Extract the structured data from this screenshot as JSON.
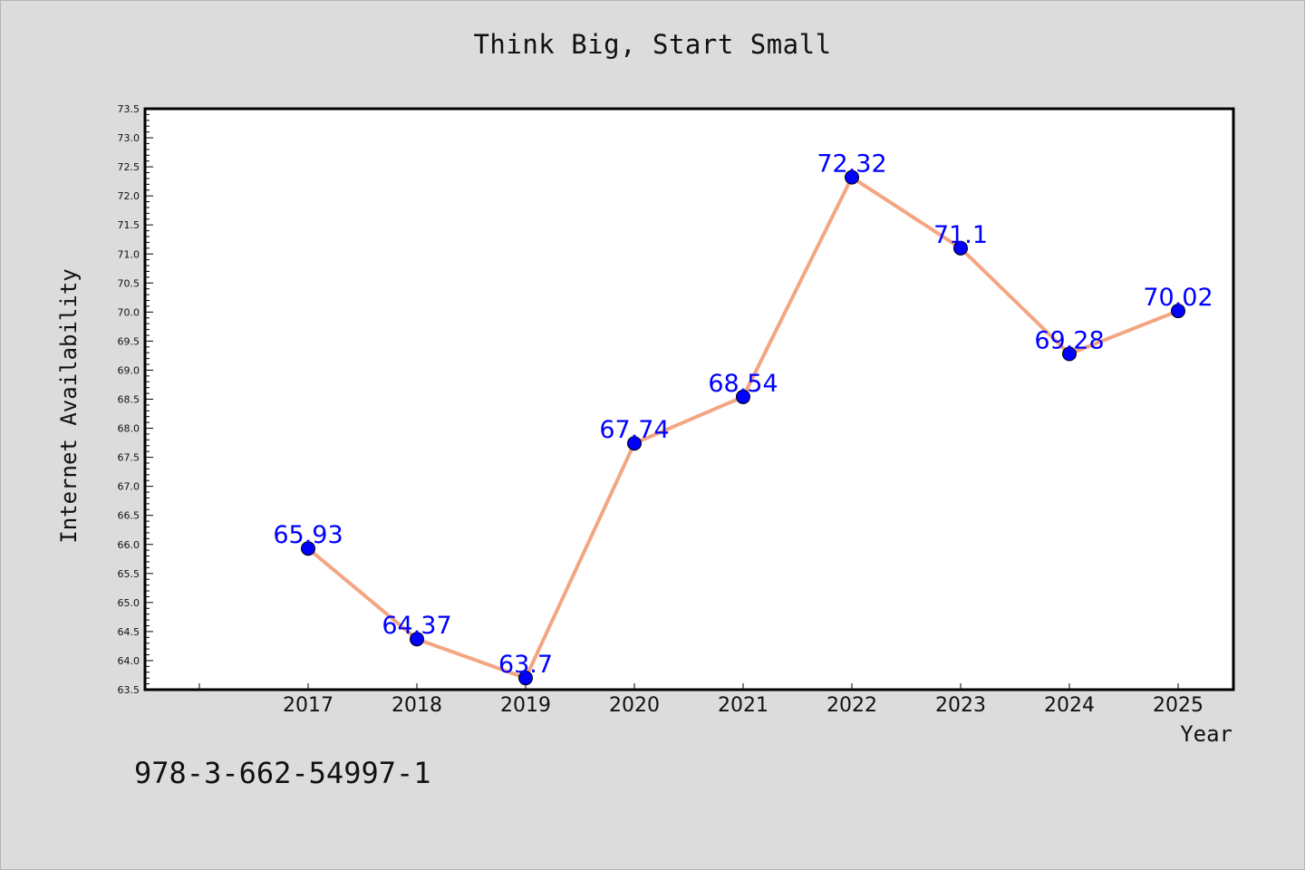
{
  "title": "Think Big, Start Small",
  "footer_text": "978-3-662-54997-1",
  "colors": {
    "background": "#dcdcdc",
    "plot_background": "#ffffff",
    "line": "#f4a582",
    "marker": "#0000ff",
    "data_label": "#0000ff"
  },
  "chart_data": {
    "type": "line",
    "title": "Think Big, Start Small",
    "xlabel": "Year",
    "ylabel": "Internet Availability",
    "x": [
      "2017",
      "2018",
      "2019",
      "2020",
      "2021",
      "2022",
      "2023",
      "2024",
      "2025"
    ],
    "series": [
      {
        "values": [
          65.93,
          64.37,
          63.7,
          67.74,
          68.54,
          72.32,
          71.1,
          69.28,
          70.02
        ]
      }
    ],
    "data_labels": [
      "65.93",
      "64.37",
      "63.7",
      "67.74",
      "68.54",
      "72.32",
      "71.1",
      "69.28",
      "70.02"
    ],
    "ylim": [
      63.5,
      73.5
    ],
    "y_ticks": [
      "63.5",
      "64.0",
      "64.5",
      "65.0",
      "65.5",
      "66.0",
      "66.5",
      "67.0",
      "67.5",
      "68.0",
      "68.5",
      "69.0",
      "69.5",
      "70.0",
      "70.5",
      "71.0",
      "71.5",
      "72.0",
      "72.5",
      "73.0",
      "73.5"
    ],
    "grid": false,
    "legend": "none"
  }
}
